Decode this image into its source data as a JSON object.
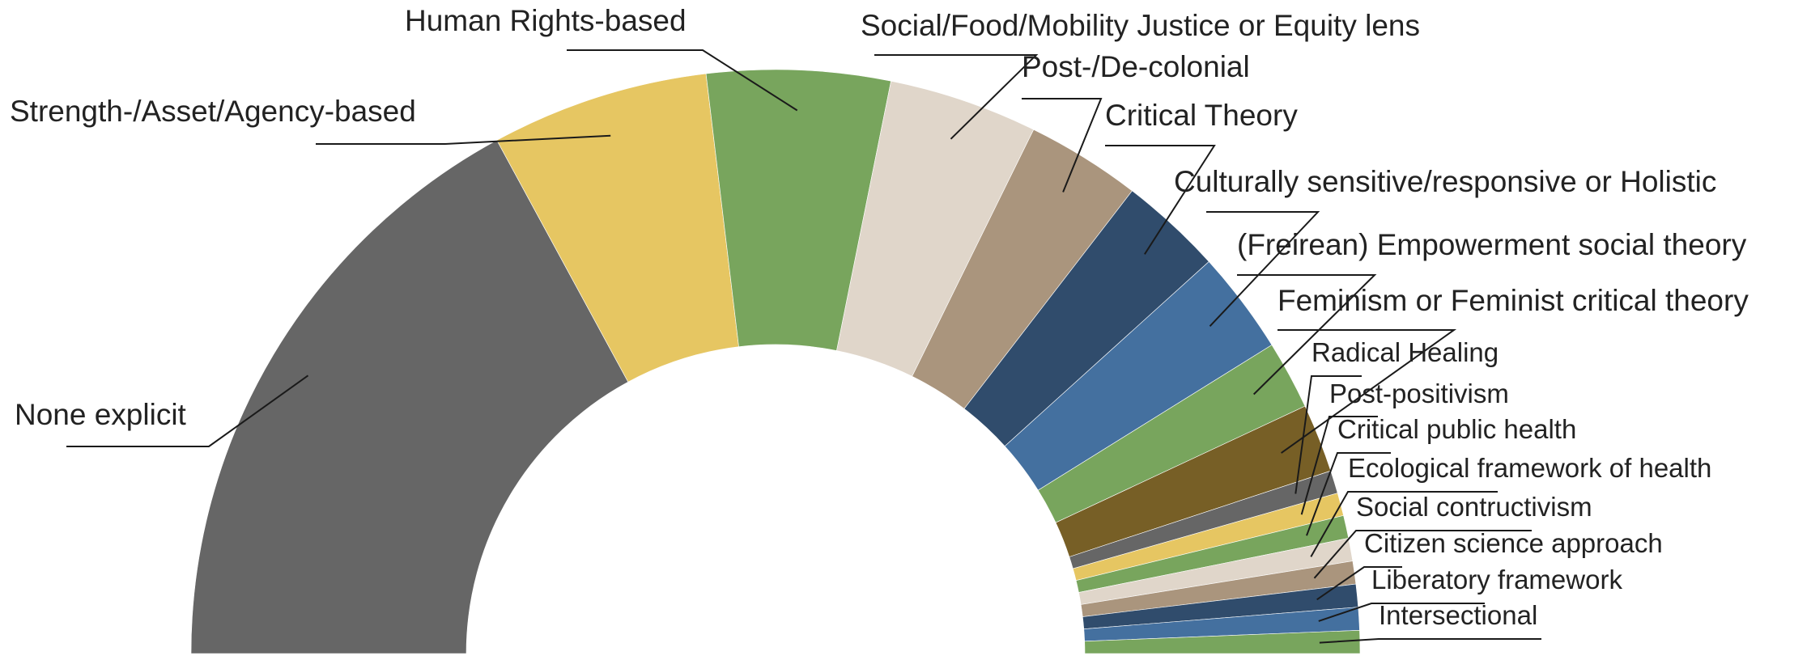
{
  "chart_data": {
    "type": "pie",
    "subtype": "half-donut",
    "title": "",
    "categories": [
      "None explicit",
      "Strength-/Asset/Agency-based",
      "Human Rights-based",
      "Social/Food/Mobility Justice or Equity lens",
      "Post-/De-colonial",
      "Critical Theory",
      "Culturally sensitive/responsive or Holistic",
      "(Freirean) Empowerment social theory",
      "Feminism or Feminist critical theory",
      "Radical Healing",
      "Post-positivism",
      "Critical public health",
      "Ecological framework of health",
      "Social contructivism",
      "Citizen science approach",
      "Liberatory framework",
      "Intersectional"
    ],
    "values": [
      54,
      19,
      16,
      13,
      10,
      9,
      9,
      6,
      6,
      2,
      2,
      2,
      2,
      2,
      2,
      2,
      2
    ],
    "colors": [
      "#666666",
      "#E6C662",
      "#78A55D",
      "#E0D6CA",
      "#AA957D",
      "#304C6C",
      "#44709F",
      "#78A55D",
      "#775F26",
      "#666666",
      "#E6C662",
      "#78A55D",
      "#E0D6CA",
      "#AA957D",
      "#304C6C",
      "#44709F",
      "#78A55D"
    ],
    "legend": "none",
    "labels_placement": "outside with leader lines"
  }
}
